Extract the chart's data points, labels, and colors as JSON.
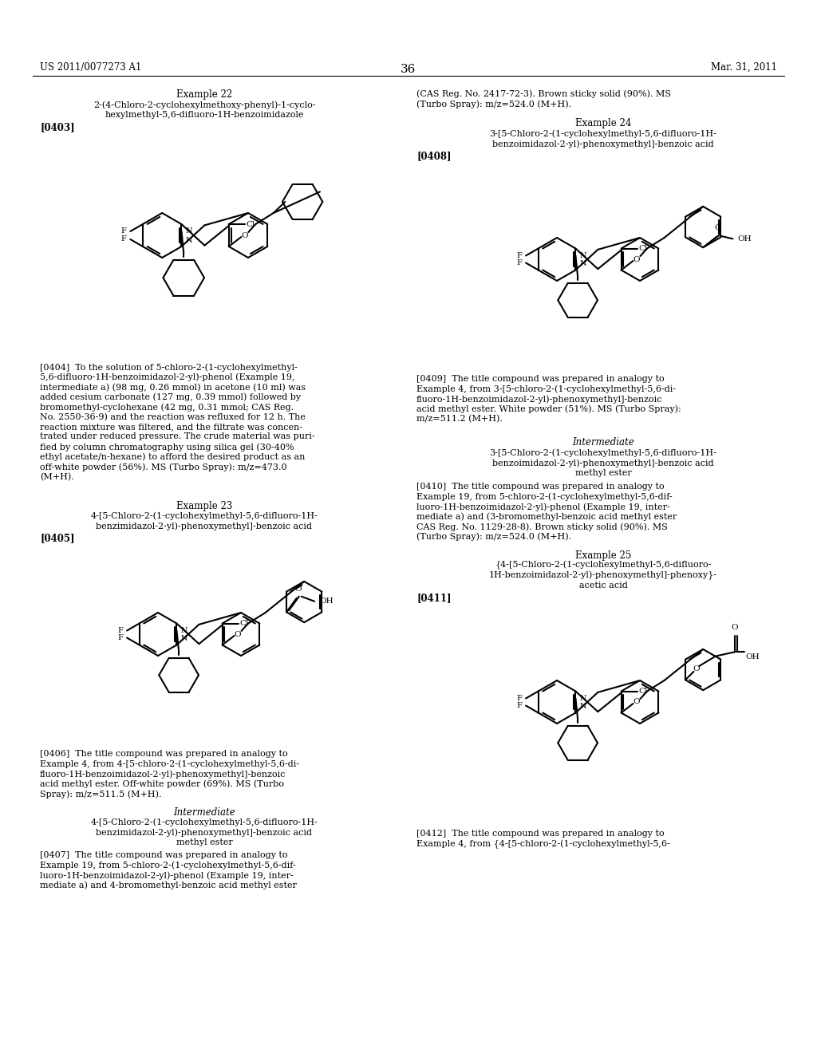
{
  "page_width": 10.24,
  "page_height": 13.2,
  "bg_color": "#ffffff",
  "header_left": "US 2011/0077273 A1",
  "header_right": "Mar. 31, 2011",
  "page_number": "36"
}
